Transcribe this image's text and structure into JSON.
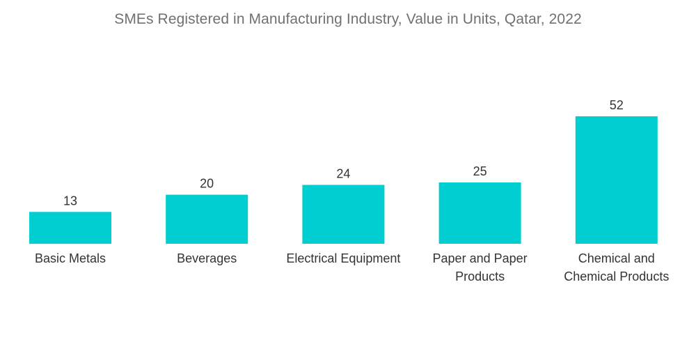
{
  "chart_data": {
    "type": "bar",
    "title": "SMEs Registered in Manufacturing Industry, Value in Units, Qatar, 2022",
    "categories": [
      [
        "Basic Metals"
      ],
      [
        "Beverages"
      ],
      [
        "Electrical Equipment"
      ],
      [
        "Paper and Paper",
        "Products"
      ],
      [
        "Chemical and",
        "Chemical Products"
      ]
    ],
    "values": [
      13,
      20,
      24,
      25,
      52
    ],
    "xlabel": "",
    "ylabel": "",
    "ylim": [
      0,
      52
    ],
    "grid": false,
    "legend": "none",
    "bar_color": "#00CED1"
  }
}
